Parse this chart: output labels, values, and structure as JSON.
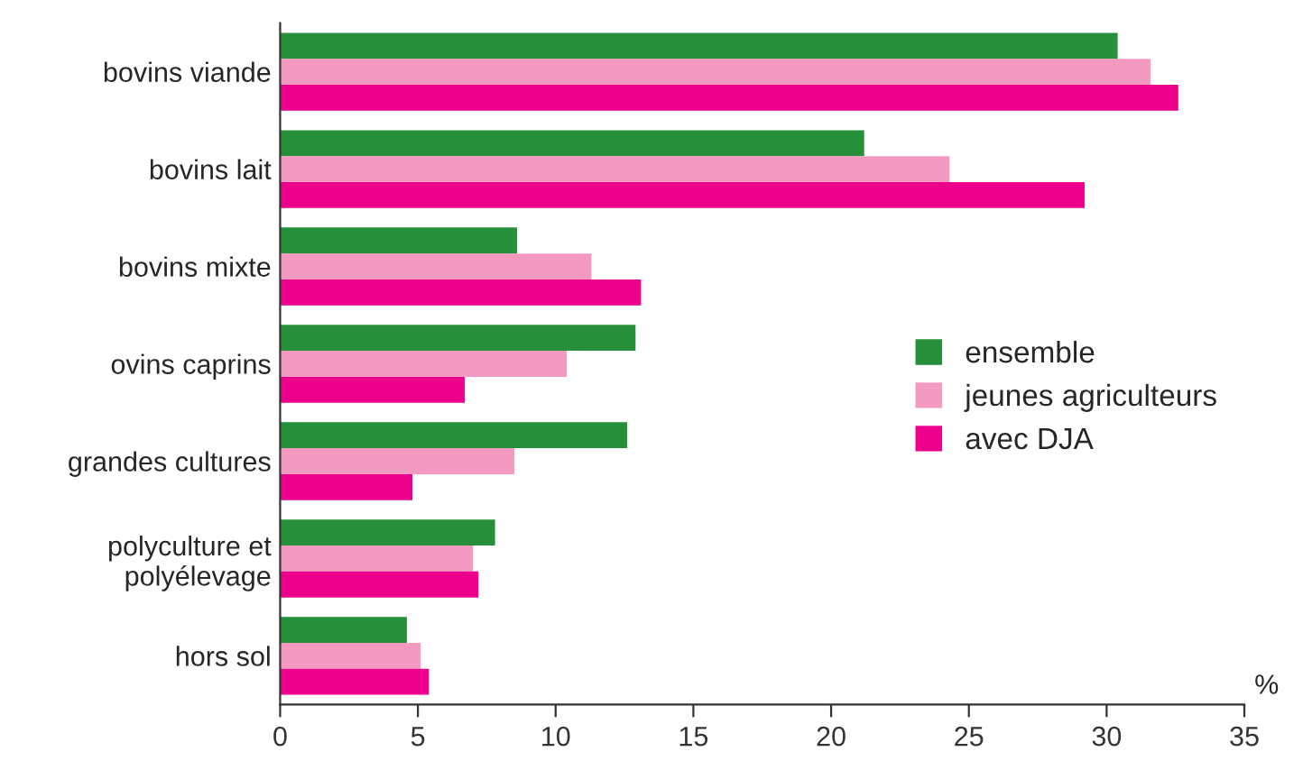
{
  "chart_data": {
    "type": "bar",
    "orientation": "horizontal",
    "xlabel": "%",
    "categories": [
      "bovins viande",
      "bovins lait",
      "bovins mixte",
      "ovins caprins",
      "grandes cultures",
      "polyculture et\npolyélevage",
      "hors sol"
    ],
    "series": [
      {
        "name": "ensemble",
        "color": "#258f3a",
        "values": [
          30.4,
          21.2,
          8.6,
          12.9,
          12.6,
          7.8,
          4.6
        ]
      },
      {
        "name": "jeunes agriculteurs",
        "color": "#f49ac1",
        "values": [
          31.6,
          24.3,
          11.3,
          10.4,
          8.5,
          7.0,
          5.1
        ]
      },
      {
        "name": "avec DJA",
        "color": "#ec008c",
        "values": [
          32.6,
          29.2,
          13.1,
          6.7,
          4.8,
          7.2,
          5.4
        ]
      }
    ],
    "xlim": [
      0,
      35
    ],
    "xticks": [
      0,
      5,
      10,
      15,
      20,
      25,
      30,
      35
    ],
    "grid": false,
    "legend": "right"
  }
}
